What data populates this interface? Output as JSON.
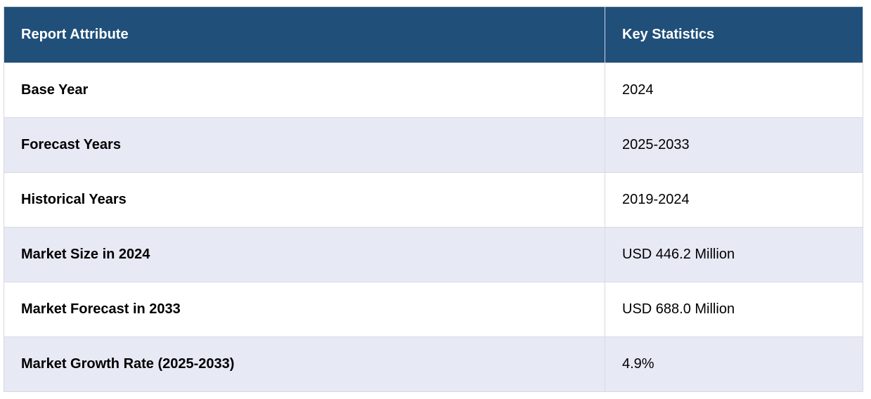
{
  "table": {
    "headers": {
      "attribute": "Report Attribute",
      "statistics": "Key Statistics"
    },
    "rows": [
      {
        "attribute": "Base Year",
        "value": "2024"
      },
      {
        "attribute": "Forecast Years",
        "value": "2025-2033"
      },
      {
        "attribute": "Historical Years",
        "value": "2019-2024"
      },
      {
        "attribute": "Market Size in 2024",
        "value": "USD 446.2 Million"
      },
      {
        "attribute": "Market Forecast in 2033",
        "value": "USD 688.0 Million"
      },
      {
        "attribute": "Market Growth Rate (2025-2033)",
        "value": "4.9%"
      }
    ]
  },
  "colors": {
    "header_background": "#204f7a",
    "header_text": "#ffffff",
    "row_alt_background": "#e7e9f5",
    "border": "#d6d9e0"
  }
}
